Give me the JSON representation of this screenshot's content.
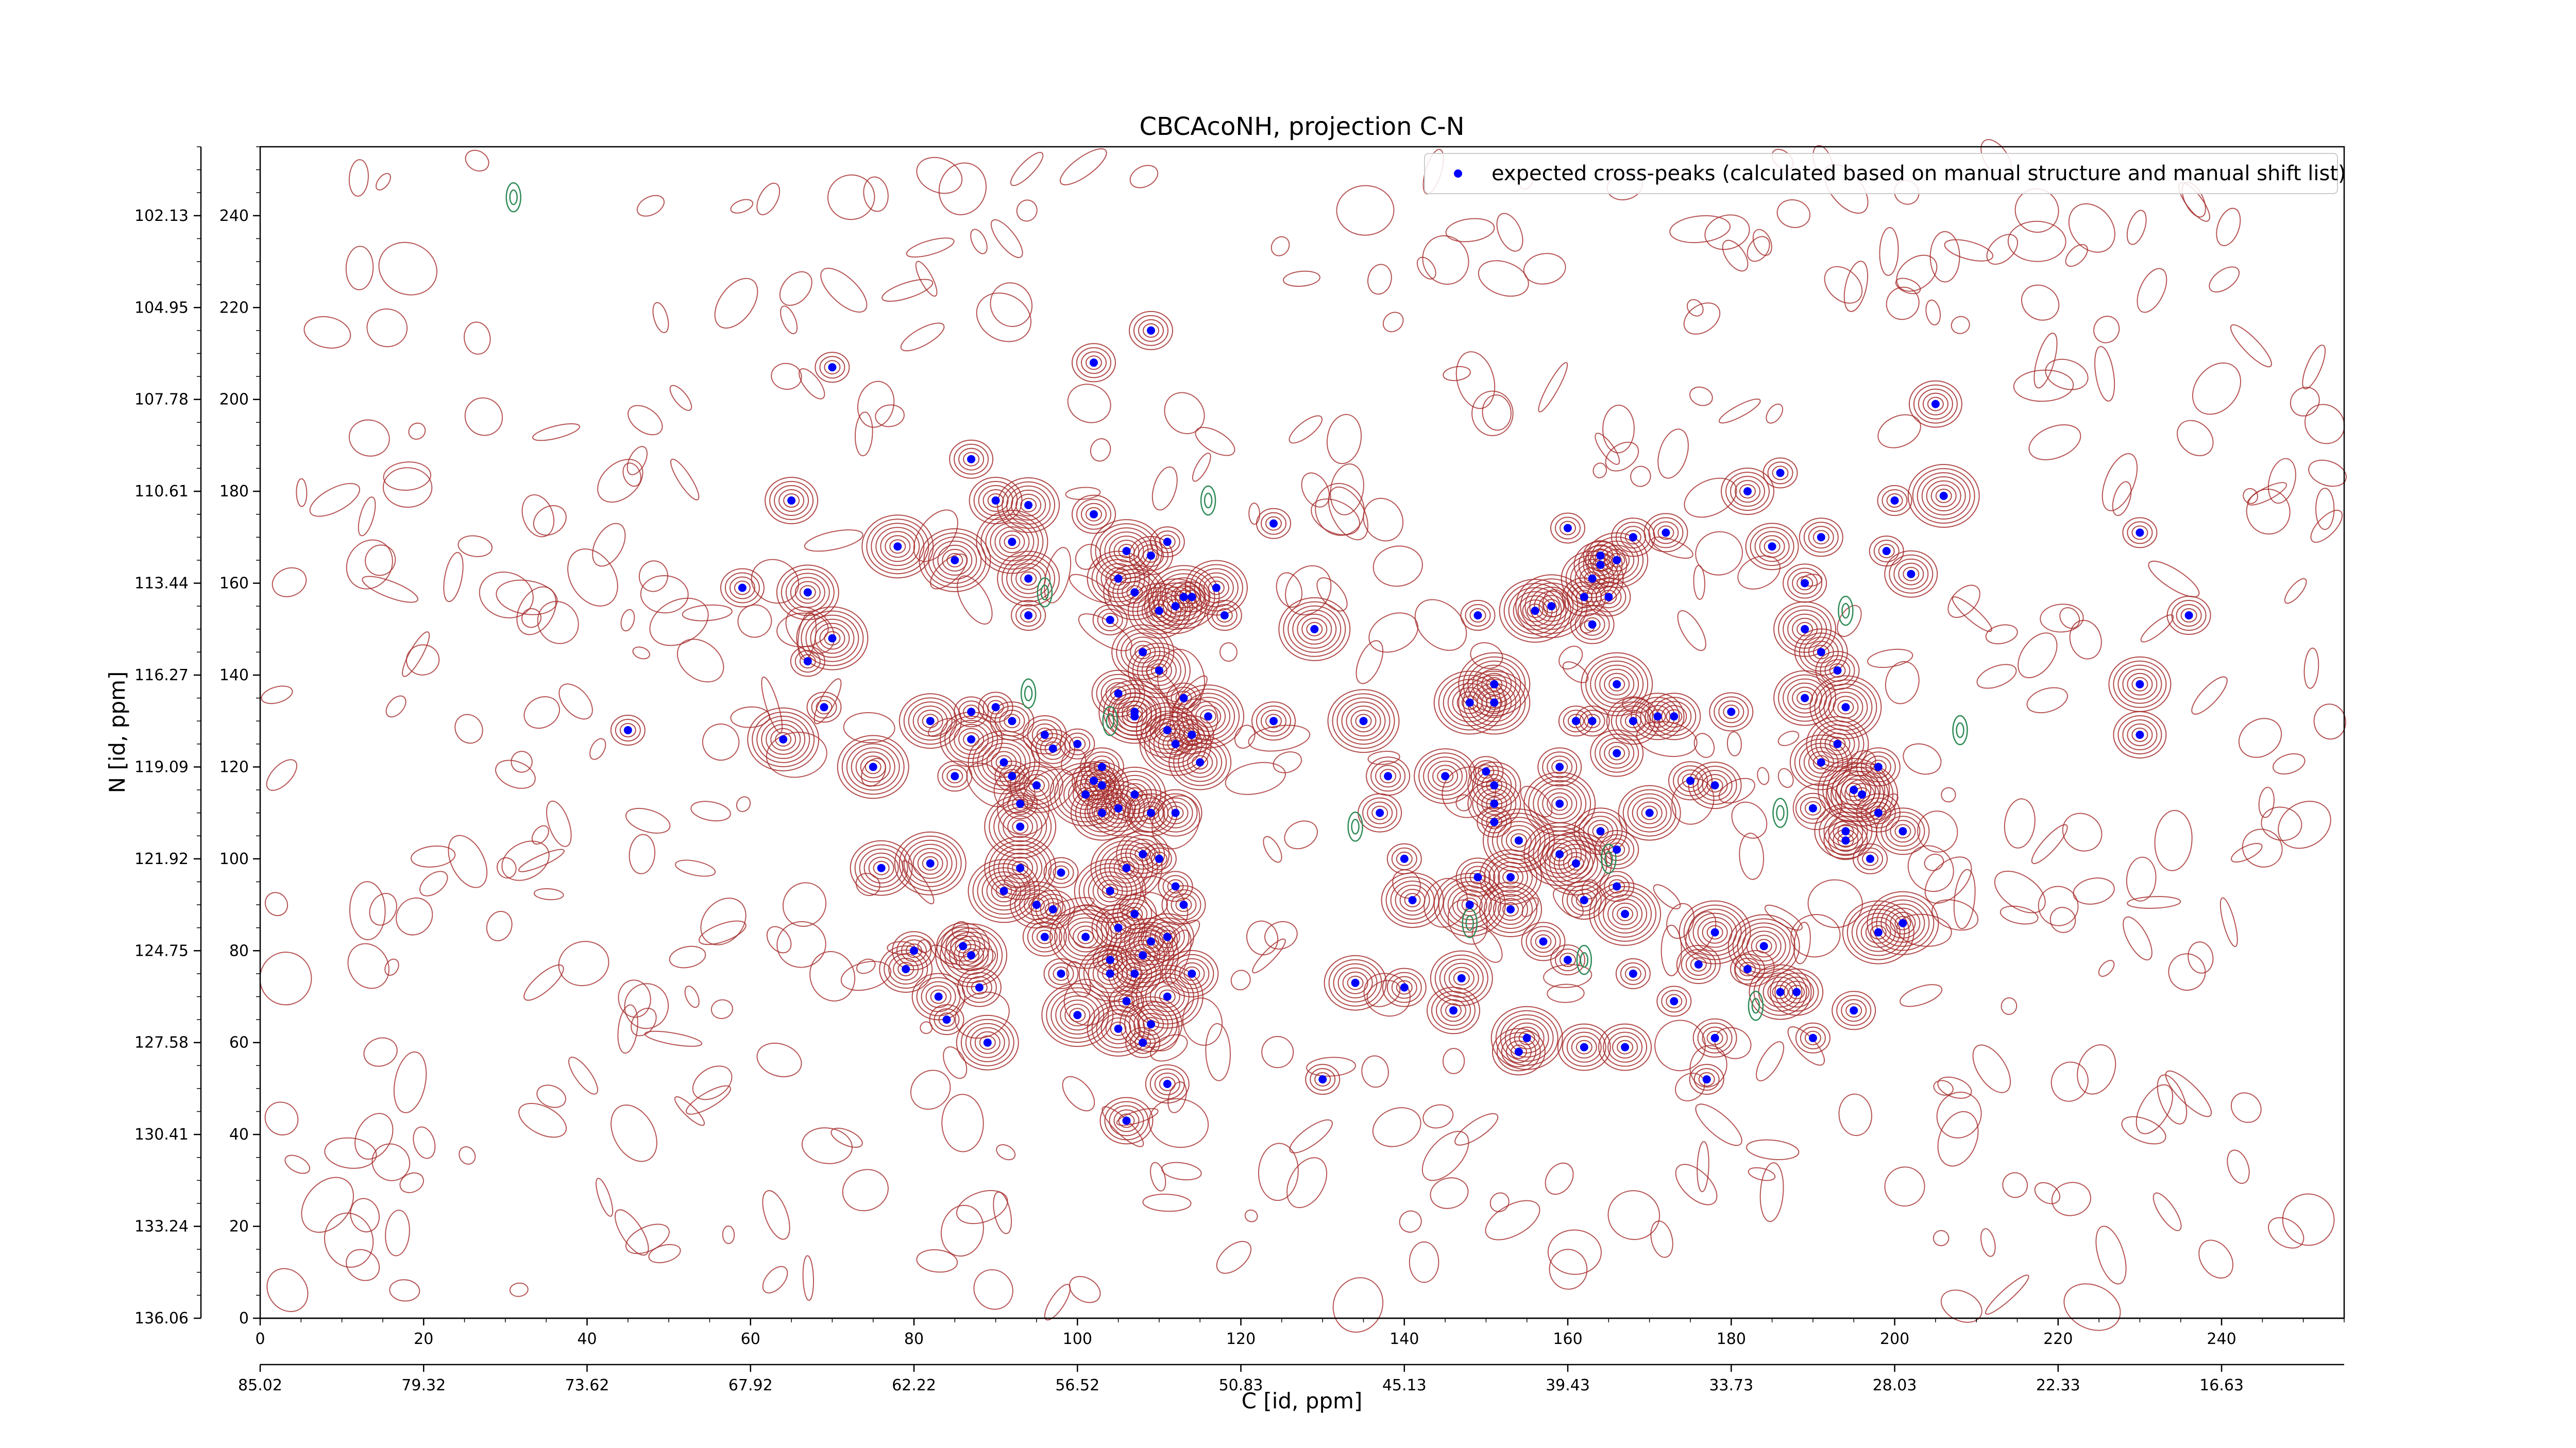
{
  "chart_data": {
    "type": "scatter",
    "title": "CBCAcoNH, projection C-N",
    "xlabel": "C [id, ppm]",
    "ylabel": "N [id, ppm]",
    "xlim": [
      0,
      255
    ],
    "ylim": [
      0,
      255
    ],
    "x_index_ticks": [
      0,
      20,
      40,
      60,
      80,
      100,
      120,
      140,
      160,
      180,
      200,
      220,
      240
    ],
    "x_ppm_ticks": [
      "85.02",
      "79.32",
      "73.62",
      "67.92",
      "62.22",
      "56.52",
      "50.83",
      "45.13",
      "39.43",
      "33.73",
      "28.03",
      "22.33",
      "16.63"
    ],
    "x_ppm_tick_positions": [
      0,
      20,
      40,
      60,
      80,
      100,
      120,
      140,
      160,
      180,
      200,
      220,
      240
    ],
    "y_index_ticks": [
      0,
      20,
      40,
      60,
      80,
      100,
      120,
      140,
      160,
      180,
      200,
      220,
      240
    ],
    "y_ppm_ticks": [
      "136.06",
      "133.24",
      "130.41",
      "127.58",
      "124.75",
      "121.92",
      "119.09",
      "116.27",
      "113.44",
      "110.61",
      "107.78",
      "104.95",
      "102.13"
    ],
    "y_ppm_tick_positions": [
      0,
      20,
      40,
      60,
      80,
      100,
      120,
      140,
      160,
      180,
      200,
      220,
      240
    ],
    "legend": {
      "placement": "top-right",
      "entries": [
        "expected cross-peaks (calculated based on manual structure and manual shift list)"
      ]
    },
    "colors": {
      "peaks": "#0000ff",
      "contour_positive": "#a52a2a",
      "contour_negative": "#2e8b57"
    },
    "series": [
      {
        "name": "expected cross-peaks (calculated based on manual structure and manual shift list)",
        "points": [
          [
            45,
            128
          ],
          [
            59,
            159
          ],
          [
            65,
            178
          ],
          [
            67,
            158
          ],
          [
            64,
            126
          ],
          [
            67,
            143
          ],
          [
            69,
            133
          ],
          [
            70,
            148
          ],
          [
            70,
            207
          ],
          [
            75,
            120
          ],
          [
            76,
            98
          ],
          [
            78,
            168
          ],
          [
            79,
            76
          ],
          [
            80,
            80
          ],
          [
            82,
            130
          ],
          [
            82,
            99
          ],
          [
            83,
            70
          ],
          [
            84,
            65
          ],
          [
            85,
            118
          ],
          [
            85,
            165
          ],
          [
            86,
            81
          ],
          [
            87,
            79
          ],
          [
            87,
            132
          ],
          [
            87,
            126
          ],
          [
            88,
            72
          ],
          [
            87,
            187
          ],
          [
            89,
            60
          ],
          [
            90,
            133
          ],
          [
            90,
            178
          ],
          [
            91,
            121
          ],
          [
            91,
            93
          ],
          [
            92,
            118
          ],
          [
            92,
            169
          ],
          [
            92,
            130
          ],
          [
            93,
            112
          ],
          [
            93,
            98
          ],
          [
            93,
            107
          ],
          [
            94,
            177
          ],
          [
            94,
            161
          ],
          [
            94,
            153
          ],
          [
            95,
            116
          ],
          [
            95,
            90
          ],
          [
            96,
            83
          ],
          [
            96,
            127
          ],
          [
            97,
            89
          ],
          [
            97,
            124
          ],
          [
            98,
            75
          ],
          [
            98,
            97
          ],
          [
            100,
            66
          ],
          [
            100,
            125
          ],
          [
            101,
            83
          ],
          [
            101,
            114
          ],
          [
            102,
            175
          ],
          [
            102,
            117
          ],
          [
            102,
            208
          ],
          [
            103,
            110
          ],
          [
            103,
            120
          ],
          [
            103,
            116
          ],
          [
            104,
            93
          ],
          [
            104,
            78
          ],
          [
            104,
            152
          ],
          [
            104,
            75
          ],
          [
            105,
            161
          ],
          [
            105,
            136
          ],
          [
            105,
            111
          ],
          [
            105,
            85
          ],
          [
            105,
            63
          ],
          [
            106,
            43
          ],
          [
            106,
            98
          ],
          [
            106,
            69
          ],
          [
            106,
            167
          ],
          [
            107,
            131
          ],
          [
            107,
            158
          ],
          [
            107,
            132
          ],
          [
            107,
            114
          ],
          [
            107,
            88
          ],
          [
            107,
            75
          ],
          [
            108,
            145
          ],
          [
            108,
            60
          ],
          [
            108,
            101
          ],
          [
            108,
            79
          ],
          [
            109,
            82
          ],
          [
            109,
            110
          ],
          [
            109,
            166
          ],
          [
            109,
            215
          ],
          [
            109,
            64
          ],
          [
            110,
            154
          ],
          [
            110,
            100
          ],
          [
            110,
            141
          ],
          [
            111,
            83
          ],
          [
            111,
            70
          ],
          [
            111,
            51
          ],
          [
            111,
            169
          ],
          [
            111,
            128
          ],
          [
            112,
            155
          ],
          [
            112,
            110
          ],
          [
            112,
            125
          ],
          [
            112,
            94
          ],
          [
            113,
            157
          ],
          [
            113,
            135
          ],
          [
            113,
            90
          ],
          [
            114,
            157
          ],
          [
            114,
            75
          ],
          [
            114,
            127
          ],
          [
            115,
            121
          ],
          [
            116,
            131
          ],
          [
            117,
            159
          ],
          [
            118,
            153
          ],
          [
            124,
            130
          ],
          [
            124,
            173
          ],
          [
            129,
            150
          ],
          [
            130,
            52
          ],
          [
            134,
            73
          ],
          [
            135,
            130
          ],
          [
            137,
            110
          ],
          [
            138,
            118
          ],
          [
            140,
            72
          ],
          [
            140,
            100
          ],
          [
            141,
            91
          ],
          [
            145,
            118
          ],
          [
            146,
            67
          ],
          [
            147,
            74
          ],
          [
            148,
            90
          ],
          [
            149,
            153
          ],
          [
            148,
            134
          ],
          [
            149,
            96
          ],
          [
            150,
            119
          ],
          [
            151,
            116
          ],
          [
            151,
            108
          ],
          [
            151,
            112
          ],
          [
            151,
            138
          ],
          [
            151,
            134
          ],
          [
            153,
            89
          ],
          [
            153,
            96
          ],
          [
            154,
            58
          ],
          [
            155,
            61
          ],
          [
            156,
            154
          ],
          [
            154,
            104
          ],
          [
            157,
            82
          ],
          [
            158,
            155
          ],
          [
            159,
            101
          ],
          [
            160,
            172
          ],
          [
            159,
            120
          ],
          [
            159,
            112
          ],
          [
            160,
            78
          ],
          [
            162,
            91
          ],
          [
            162,
            157
          ],
          [
            161,
            130
          ],
          [
            161,
            99
          ],
          [
            162,
            59
          ],
          [
            163,
            161
          ],
          [
            163,
            151
          ],
          [
            163,
            130
          ],
          [
            164,
            166
          ],
          [
            164,
            164
          ],
          [
            164,
            106
          ],
          [
            165,
            157
          ],
          [
            166,
            123
          ],
          [
            166,
            94
          ],
          [
            167,
            88
          ],
          [
            166,
            138
          ],
          [
            166,
            165
          ],
          [
            166,
            102
          ],
          [
            167,
            59
          ],
          [
            168,
            75
          ],
          [
            168,
            170
          ],
          [
            168,
            130
          ],
          [
            170,
            110
          ],
          [
            171,
            131
          ],
          [
            172,
            171
          ],
          [
            173,
            131
          ],
          [
            173,
            69
          ],
          [
            175,
            117
          ],
          [
            176,
            77
          ],
          [
            177,
            52
          ],
          [
            178,
            61
          ],
          [
            178,
            116
          ],
          [
            178,
            84
          ],
          [
            180,
            132
          ],
          [
            182,
            180
          ],
          [
            182,
            76
          ],
          [
            184,
            81
          ],
          [
            185,
            168
          ],
          [
            186,
            71
          ],
          [
            186,
            184
          ],
          [
            188,
            71
          ],
          [
            189,
            135
          ],
          [
            189,
            160
          ],
          [
            189,
            150
          ],
          [
            190,
            61
          ],
          [
            190,
            111
          ],
          [
            191,
            121
          ],
          [
            191,
            145
          ],
          [
            191,
            170
          ],
          [
            193,
            125
          ],
          [
            194,
            106
          ],
          [
            194,
            133
          ],
          [
            193,
            141
          ],
          [
            194,
            104
          ],
          [
            195,
            67
          ],
          [
            195,
            115
          ],
          [
            196,
            114
          ],
          [
            197,
            100
          ],
          [
            198,
            110
          ],
          [
            198,
            120
          ],
          [
            198,
            84
          ],
          [
            199,
            167
          ],
          [
            200,
            178
          ],
          [
            201,
            86
          ],
          [
            201,
            106
          ],
          [
            202,
            162
          ],
          [
            205,
            199
          ],
          [
            206,
            179
          ],
          [
            230,
            138
          ],
          [
            230,
            171
          ],
          [
            230,
            127
          ],
          [
            236,
            153
          ]
        ]
      }
    ]
  }
}
